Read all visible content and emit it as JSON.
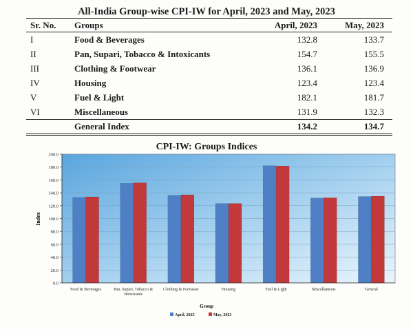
{
  "table": {
    "title": "All-India Group-wise CPI-IW for April, 2023 and May, 2023",
    "headers": {
      "sr": "Sr. No.",
      "group": "Groups",
      "april": "April, 2023",
      "may": "May, 2023"
    },
    "rows": [
      {
        "sr": "I",
        "group": "Food & Beverages",
        "april": "132.8",
        "may": "133.7"
      },
      {
        "sr": "II",
        "group": "Pan, Supari, Tobacco & Intoxicants",
        "april": "154.7",
        "may": "155.5"
      },
      {
        "sr": "III",
        "group": "Clothing & Footwear",
        "april": "136.1",
        "may": "136.9"
      },
      {
        "sr": "IV",
        "group": "Housing",
        "april": "123.4",
        "may": "123.4"
      },
      {
        "sr": "V",
        "group": "Fuel & Light",
        "april": "182.1",
        "may": "181.7"
      },
      {
        "sr": "VI",
        "group": "Miscellaneous",
        "april": "131.9",
        "may": "132.3"
      }
    ],
    "total": {
      "sr": "",
      "group": "General Index",
      "april": "134.2",
      "may": "134.7"
    }
  },
  "chart_data": {
    "type": "bar",
    "title": "CPI-IW: Groups Indices",
    "xlabel": "Group",
    "ylabel": "Index",
    "categories": [
      "Food & Beverages",
      "Pan, Supari, Tobacco & Intoxicants",
      "Clothing & Footwear",
      "Housing",
      "Fuel & Light",
      "Miscellaneous",
      "General"
    ],
    "series": [
      {
        "name": "April, 2023",
        "values": [
          132.8,
          154.7,
          136.1,
          123.4,
          182.1,
          131.9,
          134.2
        ],
        "color": "#4f7fc4"
      },
      {
        "name": "May, 2023",
        "values": [
          133.7,
          155.5,
          136.9,
          123.4,
          181.7,
          132.3,
          134.7
        ],
        "color": "#c2393b"
      }
    ],
    "ylim": [
      0,
      200
    ],
    "yticks": [
      "0.0",
      "20.0",
      "40.0",
      "60.0",
      "80.0",
      "100.0",
      "120.0",
      "140.0",
      "160.0",
      "180.0",
      "200.0"
    ],
    "grid": true,
    "legend_position": "bottom",
    "plot_background": "sky-blue gradient"
  }
}
